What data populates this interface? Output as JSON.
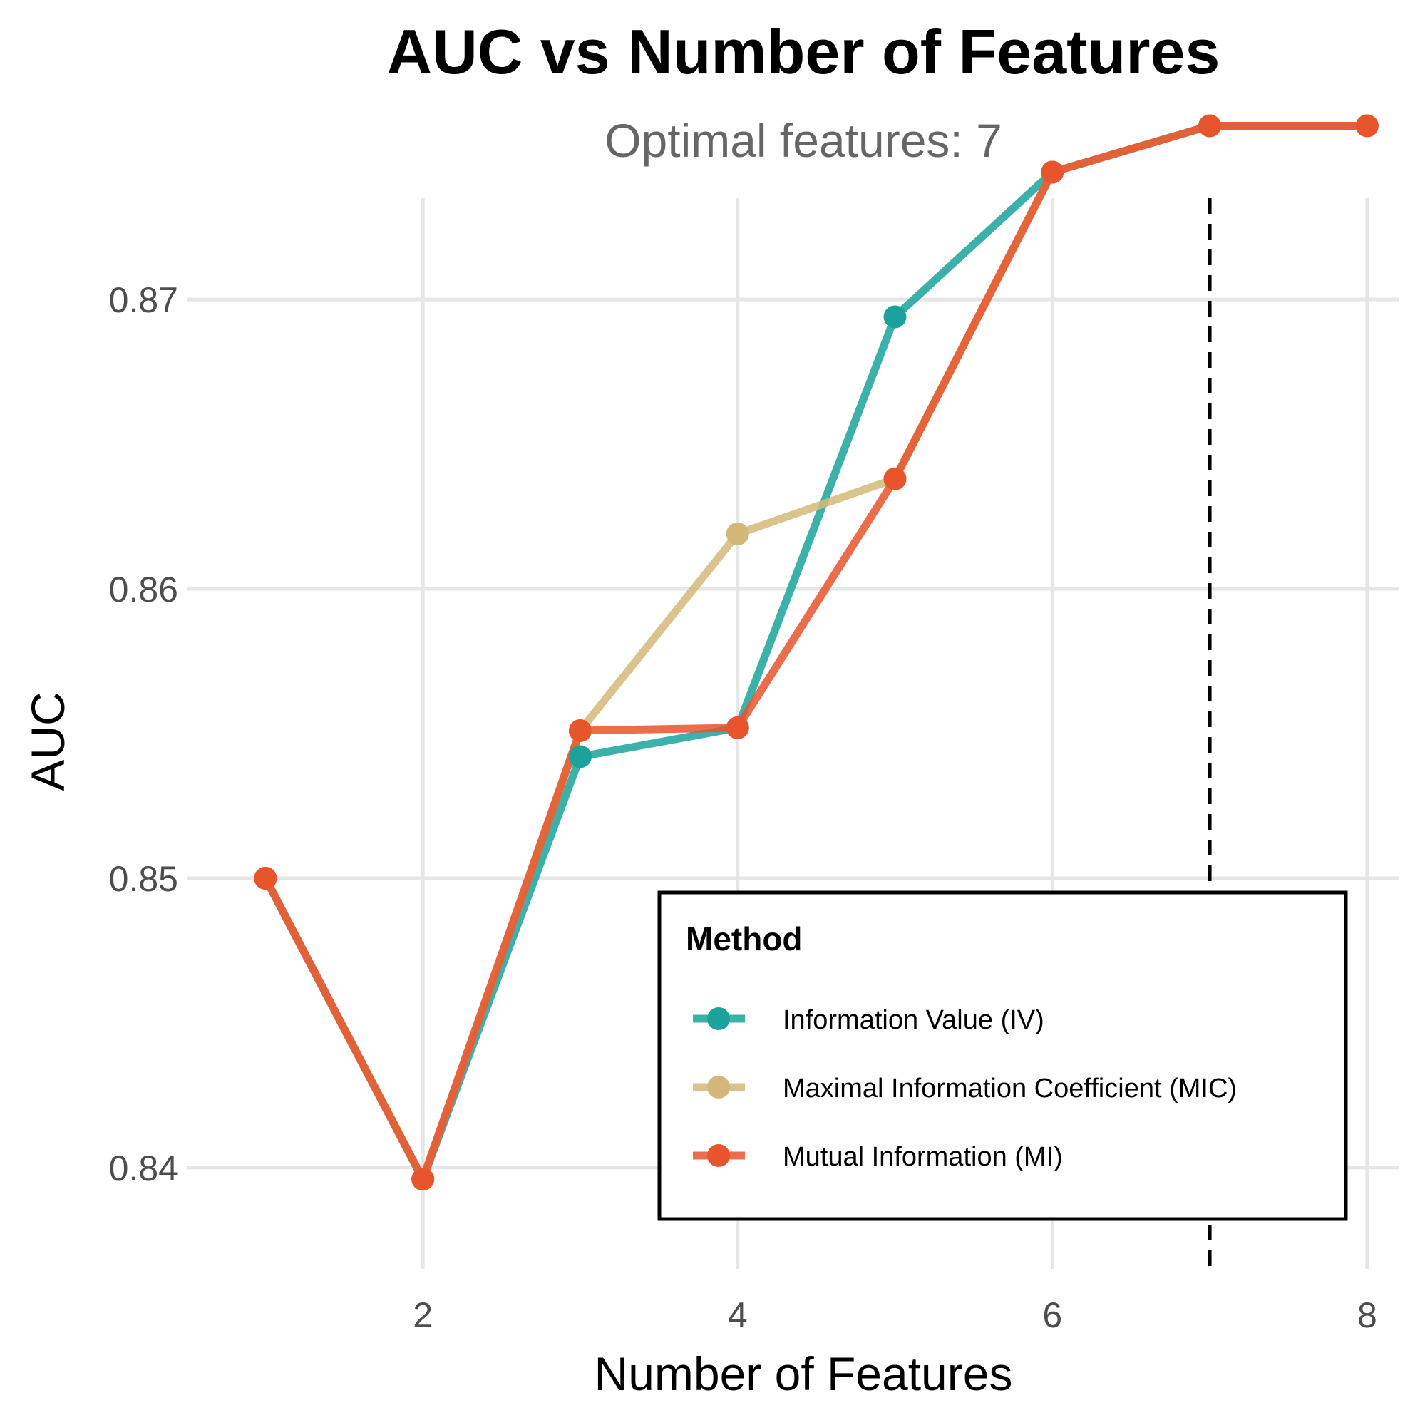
{
  "chart_data": {
    "type": "line",
    "title": "AUC vs Number of Features",
    "subtitle": "Optimal features: 7",
    "xlabel": "Number of Features",
    "ylabel": "AUC",
    "xlim": [
      0.5,
      8.2
    ],
    "ylim": [
      0.8365,
      0.8735
    ],
    "x_ticks": [
      2,
      4,
      6,
      8
    ],
    "y_ticks": [
      0.84,
      0.85,
      0.86,
      0.87
    ],
    "y_tick_labels": [
      "0.84",
      "0.85",
      "0.86",
      "0.87"
    ],
    "grid": true,
    "optimal_line": {
      "x": 7,
      "color": "#000000",
      "style": "dashed"
    },
    "legend": {
      "title": "Method",
      "position": "bottom-right"
    },
    "series": [
      {
        "name": "Information Value (IV)",
        "color": "#1aa39a",
        "x": [
          1,
          2,
          3,
          4,
          5,
          6,
          7,
          8
        ],
        "values": [
          0.85,
          0.8396,
          0.8542,
          0.8552,
          0.8694,
          0.8744,
          0.876,
          0.876
        ]
      },
      {
        "name": "Maximal Information Coefficient (MIC)",
        "color": "#d4b879",
        "x": [
          1,
          2,
          3,
          4,
          5,
          6,
          7,
          8
        ],
        "values": [
          0.85,
          0.8396,
          0.8551,
          0.8619,
          0.8638,
          0.8744,
          0.876,
          0.876
        ]
      },
      {
        "name": "Mutual Information (MI)",
        "color": "#e8542b",
        "x": [
          1,
          2,
          3,
          4,
          5,
          6,
          7,
          8
        ],
        "values": [
          0.85,
          0.8396,
          0.8551,
          0.8552,
          0.8638,
          0.8744,
          0.876,
          0.876
        ]
      }
    ]
  }
}
